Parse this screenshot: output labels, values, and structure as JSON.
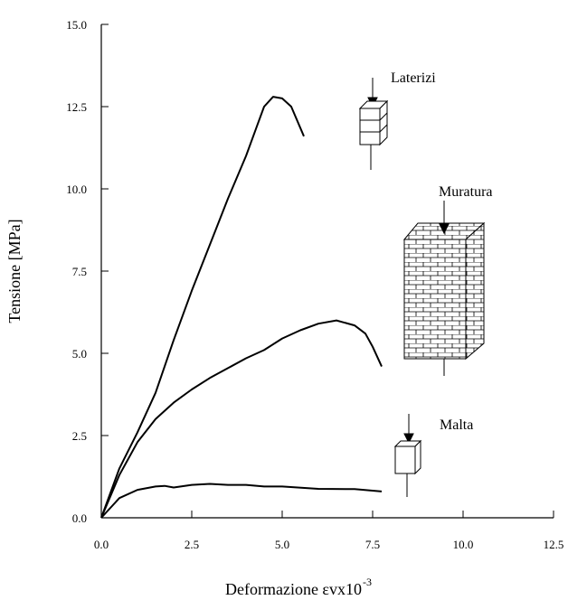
{
  "chart_data": {
    "type": "line",
    "ylabel": "Tensione [MPa]",
    "xlabel": "Deformazione  εvx10",
    "xlabel_superscript": "-3",
    "annotations": [
      "Laterizi",
      "Muratura",
      "Malta"
    ],
    "xlim": [
      0,
      12.5
    ],
    "ylim": [
      0,
      15
    ],
    "xticks": [
      {
        "value": 0,
        "label": "0.0"
      },
      {
        "value": 2.5,
        "label": "2.5"
      },
      {
        "value": 5,
        "label": "5.0"
      },
      {
        "value": 7.5,
        "label": "7.5"
      },
      {
        "value": 10,
        "label": "10.0"
      },
      {
        "value": 12.5,
        "label": "12.5"
      }
    ],
    "yticks": [
      {
        "value": 0,
        "label": "0.0"
      },
      {
        "value": 2.5,
        "label": "2.5"
      },
      {
        "value": 5,
        "label": "5.0"
      },
      {
        "value": 7.5,
        "label": "7.5"
      },
      {
        "value": 10,
        "label": "10.0"
      },
      {
        "value": 12.5,
        "label": "12.5"
      },
      {
        "value": 15,
        "label": "15.0"
      }
    ],
    "series": [
      {
        "color": "#000000",
        "x": [
          0,
          0.5,
          1,
          1.5,
          2,
          2.5,
          3,
          3.5,
          4,
          4.3,
          4.5,
          4.75,
          5,
          5.25,
          5.6
        ],
        "values": [
          0,
          1.5,
          2.6,
          3.8,
          5.4,
          6.9,
          8.3,
          9.7,
          11.0,
          11.9,
          12.5,
          12.8,
          12.75,
          12.5,
          11.6
        ]
      },
      {
        "color": "#000000",
        "x": [
          0,
          0.5,
          1,
          1.5,
          2,
          2.5,
          3,
          3.5,
          4,
          4.5,
          5,
          5.5,
          6,
          6.5,
          7,
          7.3,
          7.5,
          7.75
        ],
        "values": [
          0,
          1.3,
          2.3,
          3.0,
          3.5,
          3.9,
          4.25,
          4.55,
          4.85,
          5.1,
          5.45,
          5.7,
          5.9,
          6.0,
          5.85,
          5.6,
          5.2,
          4.6
        ]
      },
      {
        "color": "#000000",
        "x": [
          0,
          0.5,
          1,
          1.5,
          1.75,
          2,
          2.5,
          3,
          3.5,
          4,
          4.5,
          5,
          6,
          7,
          7.75
        ],
        "values": [
          0,
          0.6,
          0.85,
          0.95,
          0.97,
          0.92,
          1.0,
          1.03,
          1.0,
          1.0,
          0.95,
          0.95,
          0.88,
          0.87,
          0.8
        ]
      }
    ]
  }
}
